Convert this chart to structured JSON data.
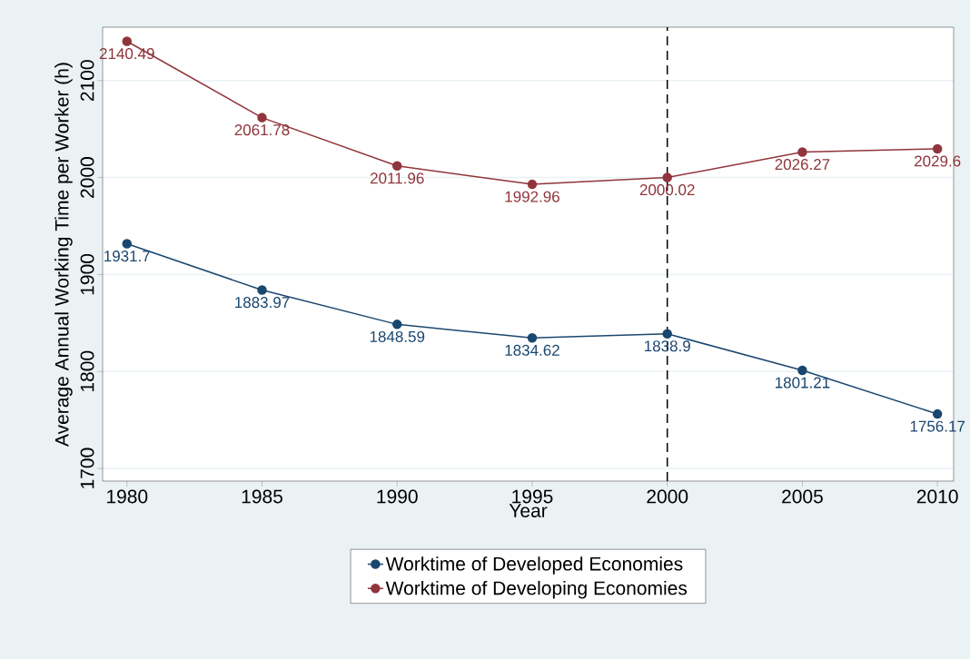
{
  "chart_data": {
    "type": "line",
    "xlabel": "Year",
    "ylabel": "Average Annual Working Time per Worker (h)",
    "x": [
      1980,
      1985,
      1990,
      1995,
      2000,
      2005,
      2010
    ],
    "series": [
      {
        "name": "Worktime of Developed Economies",
        "color": "#1a476f",
        "values": [
          1931.7,
          1883.97,
          1848.59,
          1834.62,
          1838.9,
          1801.21,
          1756.17
        ],
        "value_labels": [
          "1931.7",
          "1883.97",
          "1848.59",
          "1834.62",
          "1838.9",
          "1801.21",
          "1756.17"
        ]
      },
      {
        "name": "Worktime of Developing Economies",
        "color": "#90353b",
        "values": [
          2140.49,
          2061.78,
          2011.96,
          1992.96,
          2000.02,
          2026.27,
          2029.6
        ],
        "value_labels": [
          "2140.49",
          "2061.78",
          "2011.96",
          "1992.96",
          "2000.02",
          "2026.27",
          "2029.6"
        ]
      }
    ],
    "xlim": [
      1979.1,
      2010.6
    ],
    "ylim": [
      1687,
      2155
    ],
    "xticks": [
      1980,
      1985,
      1990,
      1995,
      2000,
      2005,
      2010
    ],
    "yticks": [
      1700,
      1800,
      1900,
      2000,
      2100
    ],
    "ref_lines": [
      {
        "axis": "x",
        "value": 2000,
        "color": "#000000",
        "line_style": "dashed"
      }
    ],
    "grid": "y",
    "legend": "bottom",
    "marker": "circle",
    "line_style": "solid"
  }
}
